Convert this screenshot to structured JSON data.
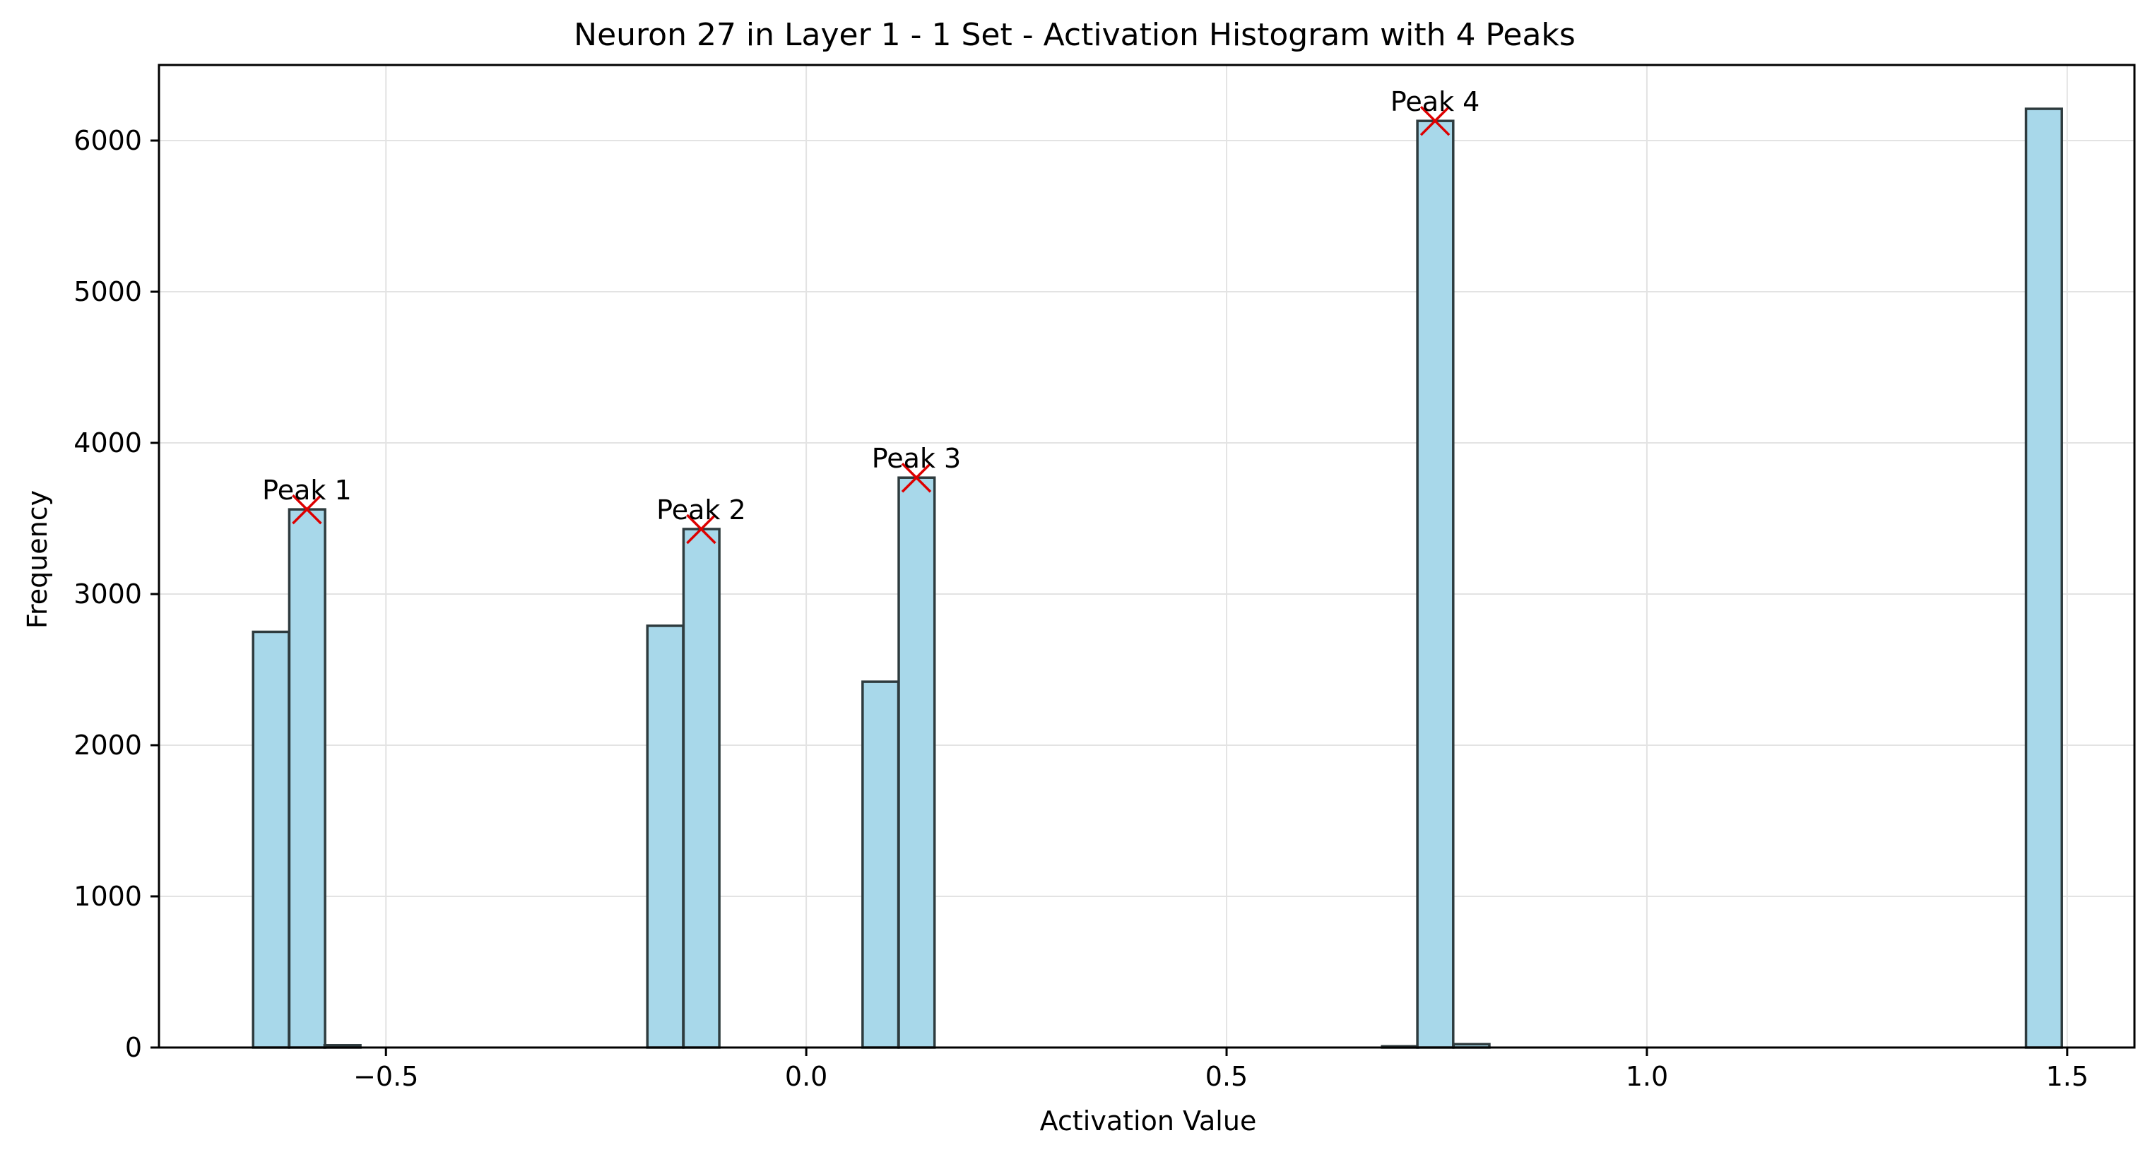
{
  "chart_data": {
    "type": "bar",
    "title": "Neuron 27 in Layer 1 - 1 Set - Activation Histogram with 4 Peaks",
    "xlabel": "Activation Value",
    "ylabel": "Frequency",
    "xlim": [
      -0.77,
      1.58
    ],
    "ylim": [
      0,
      6500
    ],
    "xticks": [
      {
        "value": -0.5,
        "label": "−0.5"
      },
      {
        "value": 0.0,
        "label": "0.0"
      },
      {
        "value": 0.5,
        "label": "0.5"
      },
      {
        "value": 1.0,
        "label": "1.0"
      },
      {
        "value": 1.5,
        "label": "1.5"
      }
    ],
    "yticks": [
      0,
      1000,
      2000,
      3000,
      4000,
      5000,
      6000
    ],
    "grid": true,
    "bar_color": "#a8d8ea",
    "bar_edge_color": "#2e3b3e",
    "peak_marker_color": "#dd0000",
    "bin_width": 0.0426,
    "bins": [
      {
        "x0": -0.658,
        "count": 2750
      },
      {
        "x0": -0.615,
        "count": 3560
      },
      {
        "x0": -0.573,
        "count": 15
      },
      {
        "x0": -0.189,
        "count": 2790
      },
      {
        "x0": -0.146,
        "count": 3430
      },
      {
        "x0": 0.067,
        "count": 2420
      },
      {
        "x0": 0.11,
        "count": 3770
      },
      {
        "x0": 0.685,
        "count": 8
      },
      {
        "x0": 0.727,
        "count": 6130
      },
      {
        "x0": 0.77,
        "count": 22
      },
      {
        "x0": 1.451,
        "count": 6210
      }
    ],
    "peaks": [
      {
        "label": "Peak 1",
        "x": -0.594,
        "y": 3560
      },
      {
        "label": "Peak 2",
        "x": -0.125,
        "y": 3430
      },
      {
        "label": "Peak 3",
        "x": 0.131,
        "y": 3770
      },
      {
        "label": "Peak 4",
        "x": 0.748,
        "y": 6130
      }
    ]
  }
}
